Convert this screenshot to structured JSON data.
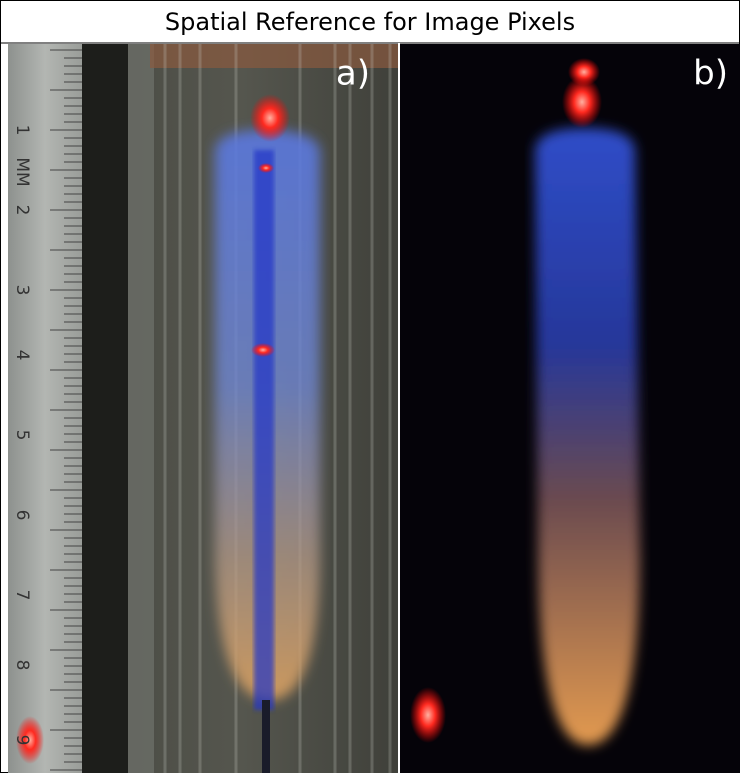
{
  "header": {
    "title": "Spatial Reference for Image Pixels"
  },
  "panels": [
    {
      "label": "a)"
    },
    {
      "label": "b)"
    }
  ],
  "ruler": {
    "unit": "MM",
    "labels": [
      "1",
      "2",
      "3",
      "4",
      "5",
      "6",
      "7",
      "8",
      "9"
    ]
  }
}
